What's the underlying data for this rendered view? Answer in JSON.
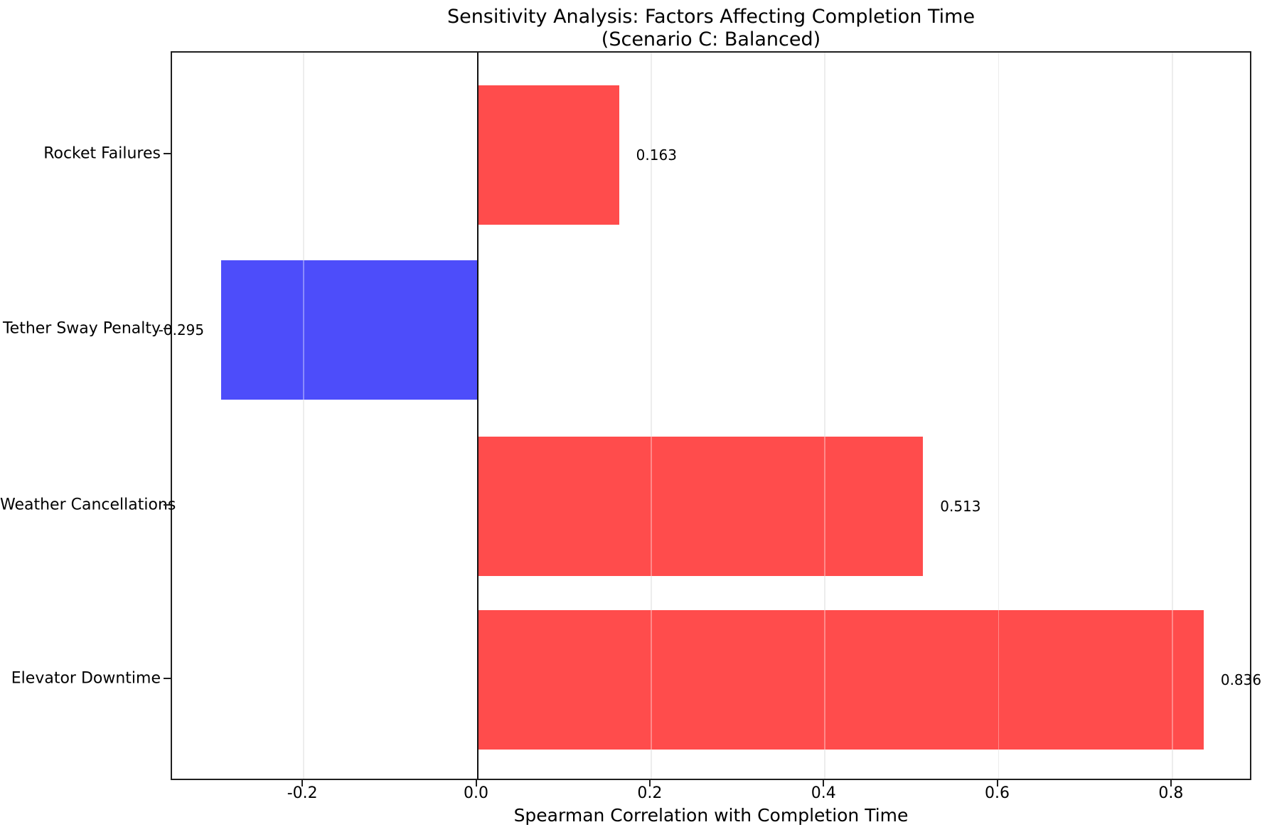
{
  "chart_data": {
    "type": "bar",
    "orientation": "horizontal",
    "title": "Sensitivity Analysis: Factors Affecting Completion Time",
    "subtitle": "(Scenario C: Balanced)",
    "xlabel": "Spearman Correlation with Completion Time",
    "categories": [
      "Rocket Failures",
      "Tether Sway Penalty",
      "Weather Cancellations",
      "Elevator Downtime"
    ],
    "values": [
      0.163,
      -0.295,
      0.513,
      0.836
    ],
    "value_labels": [
      "0.163",
      "-0.295",
      "0.513",
      "0.836"
    ],
    "bar_colors": [
      "#ff4c4c",
      "#4d4dfa",
      "#ff4c4c",
      "#ff4c4c"
    ],
    "positive_color": "#ff4c4c",
    "negative_color": "#4d4dfa",
    "x_ticks": [
      -0.2,
      0.0,
      0.2,
      0.4,
      0.6,
      0.8
    ],
    "x_tick_labels": [
      "-0.2",
      "0.0",
      "0.2",
      "0.4",
      "0.6",
      "0.8"
    ],
    "xlim": [
      -0.3516,
      0.8926
    ],
    "grid": true,
    "zero_line": true,
    "legend": null
  }
}
